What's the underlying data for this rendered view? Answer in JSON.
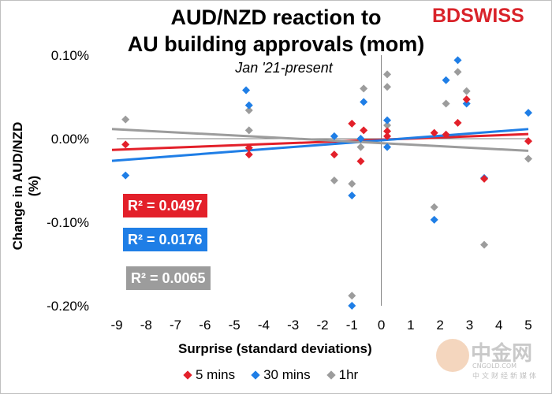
{
  "header": {
    "title_line1": "AUD/NZD reaction to",
    "title_line2": "AU building approvals (mom)",
    "subtitle": "Jan '21-present",
    "brand": "BDSWISS"
  },
  "watermark": {
    "text": "中金网",
    "url": "CNGOLD.COM",
    "sub": "中文财经新媒体"
  },
  "r2_labels": {
    "five_min": "R² = 0.0497",
    "thirty_min": "R² = 0.0176",
    "one_hour": "R² = 0.0065"
  },
  "legend": {
    "five_min": "5 mins",
    "thirty_min": "30 mins",
    "one_hour": "1hr"
  },
  "colors": {
    "five_min": "#e3202a",
    "thirty_min": "#1f7ee6",
    "one_hour": "#9c9c9c"
  },
  "chart_data": {
    "type": "scatter",
    "title": "AUD/NZD reaction to AU building approvals (mom)",
    "subtitle": "Jan '21-present",
    "xlabel": "Surprise (standard deviations)",
    "ylabel": "Change in AUD/NZD  (%)",
    "xlim": [
      -9,
      5
    ],
    "ylim": [
      -0.2,
      0.1
    ],
    "x_ticks": [
      "-9",
      "-8",
      "-7",
      "-6",
      "-5",
      "-4",
      "-3",
      "-2",
      "-1",
      "0",
      "1",
      "2",
      "3",
      "4",
      "5"
    ],
    "x_tick_values": [
      -9,
      -8,
      -7,
      -6,
      -5,
      -4,
      -3,
      -2,
      -1,
      0,
      1,
      2,
      3,
      4,
      5
    ],
    "y_ticks": [
      "0.10%",
      "0.00%",
      "-0.10%",
      "-0.20%"
    ],
    "y_tick_values": [
      0.1,
      0.0,
      -0.1,
      -0.2
    ],
    "grid": false,
    "legend_position": "bottom",
    "series": [
      {
        "name": "5 mins",
        "key": "five_min",
        "points": [
          [
            -8.7,
            -0.007
          ],
          [
            -4.5,
            -0.011
          ],
          [
            -4.5,
            -0.019
          ],
          [
            -1.6,
            -0.019
          ],
          [
            -1.0,
            0.018
          ],
          [
            -0.7,
            -0.027
          ],
          [
            -0.6,
            0.01
          ],
          [
            0.2,
            0.009
          ],
          [
            0.2,
            0.003
          ],
          [
            1.8,
            0.007
          ],
          [
            2.2,
            0.005
          ],
          [
            2.6,
            0.019
          ],
          [
            2.9,
            0.047
          ],
          [
            3.5,
            -0.048
          ],
          [
            5.0,
            -0.003
          ]
        ],
        "trend": {
          "y_at_xmin": -0.0135,
          "y_at_xmax": 0.0055
        }
      },
      {
        "name": "30 mins",
        "key": "thirty_min",
        "points": [
          [
            -8.7,
            -0.044
          ],
          [
            -4.6,
            0.058
          ],
          [
            -4.5,
            0.04
          ],
          [
            -1.6,
            0.003
          ],
          [
            -1.0,
            -0.068
          ],
          [
            -1.0,
            -0.2
          ],
          [
            -0.7,
            0.0
          ],
          [
            -0.6,
            0.044
          ],
          [
            0.2,
            0.022
          ],
          [
            0.2,
            -0.01
          ],
          [
            1.8,
            -0.097
          ],
          [
            2.2,
            0.07
          ],
          [
            2.6,
            0.094
          ],
          [
            2.9,
            0.042
          ],
          [
            3.5,
            -0.047
          ],
          [
            5.0,
            0.031
          ]
        ],
        "trend": {
          "y_at_xmin": -0.0265,
          "y_at_xmax": 0.0115
        }
      },
      {
        "name": "1hr",
        "key": "one_hour",
        "points": [
          [
            -8.7,
            0.023
          ],
          [
            -4.5,
            0.034
          ],
          [
            -4.5,
            0.01
          ],
          [
            -1.6,
            -0.05
          ],
          [
            -1.0,
            -0.054
          ],
          [
            -1.0,
            -0.188
          ],
          [
            -0.7,
            -0.01
          ],
          [
            -0.6,
            0.06
          ],
          [
            0.2,
            0.077
          ],
          [
            0.2,
            0.062
          ],
          [
            0.2,
            0.016
          ],
          [
            1.8,
            -0.082
          ],
          [
            2.2,
            0.042
          ],
          [
            2.6,
            0.08
          ],
          [
            2.9,
            0.057
          ],
          [
            3.5,
            -0.127
          ],
          [
            5.0,
            -0.024
          ]
        ],
        "trend": {
          "y_at_xmin": 0.0115,
          "y_at_xmax": -0.0145
        }
      }
    ]
  }
}
